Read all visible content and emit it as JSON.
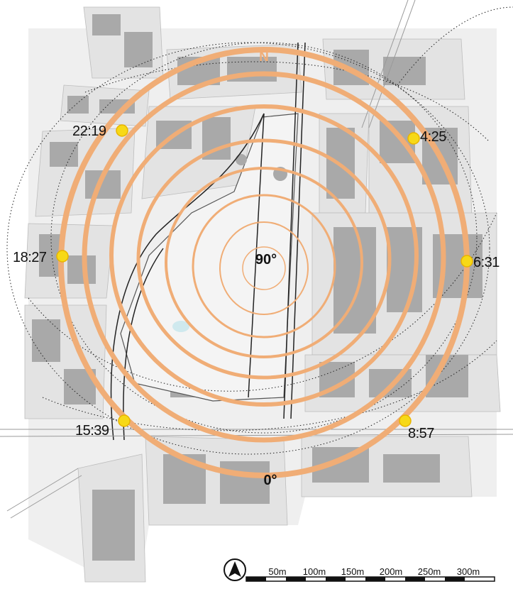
{
  "map": {
    "north_marker": "N",
    "center_angle": "90°",
    "edge_angle": "0°",
    "sun_ring_color": "#f0ad76",
    "sun_point_color": "#f7d917"
  },
  "sun_points": [
    {
      "time": "22:19"
    },
    {
      "time": "4:25"
    },
    {
      "time": "18:27"
    },
    {
      "time": "6:31"
    },
    {
      "time": "15:39"
    },
    {
      "time": "8:57"
    }
  ],
  "scale_bar": {
    "labels": [
      "50m",
      "100m",
      "150m",
      "200m",
      "250m",
      "300m"
    ]
  },
  "compass": {
    "icon": "north-arrow-icon"
  }
}
